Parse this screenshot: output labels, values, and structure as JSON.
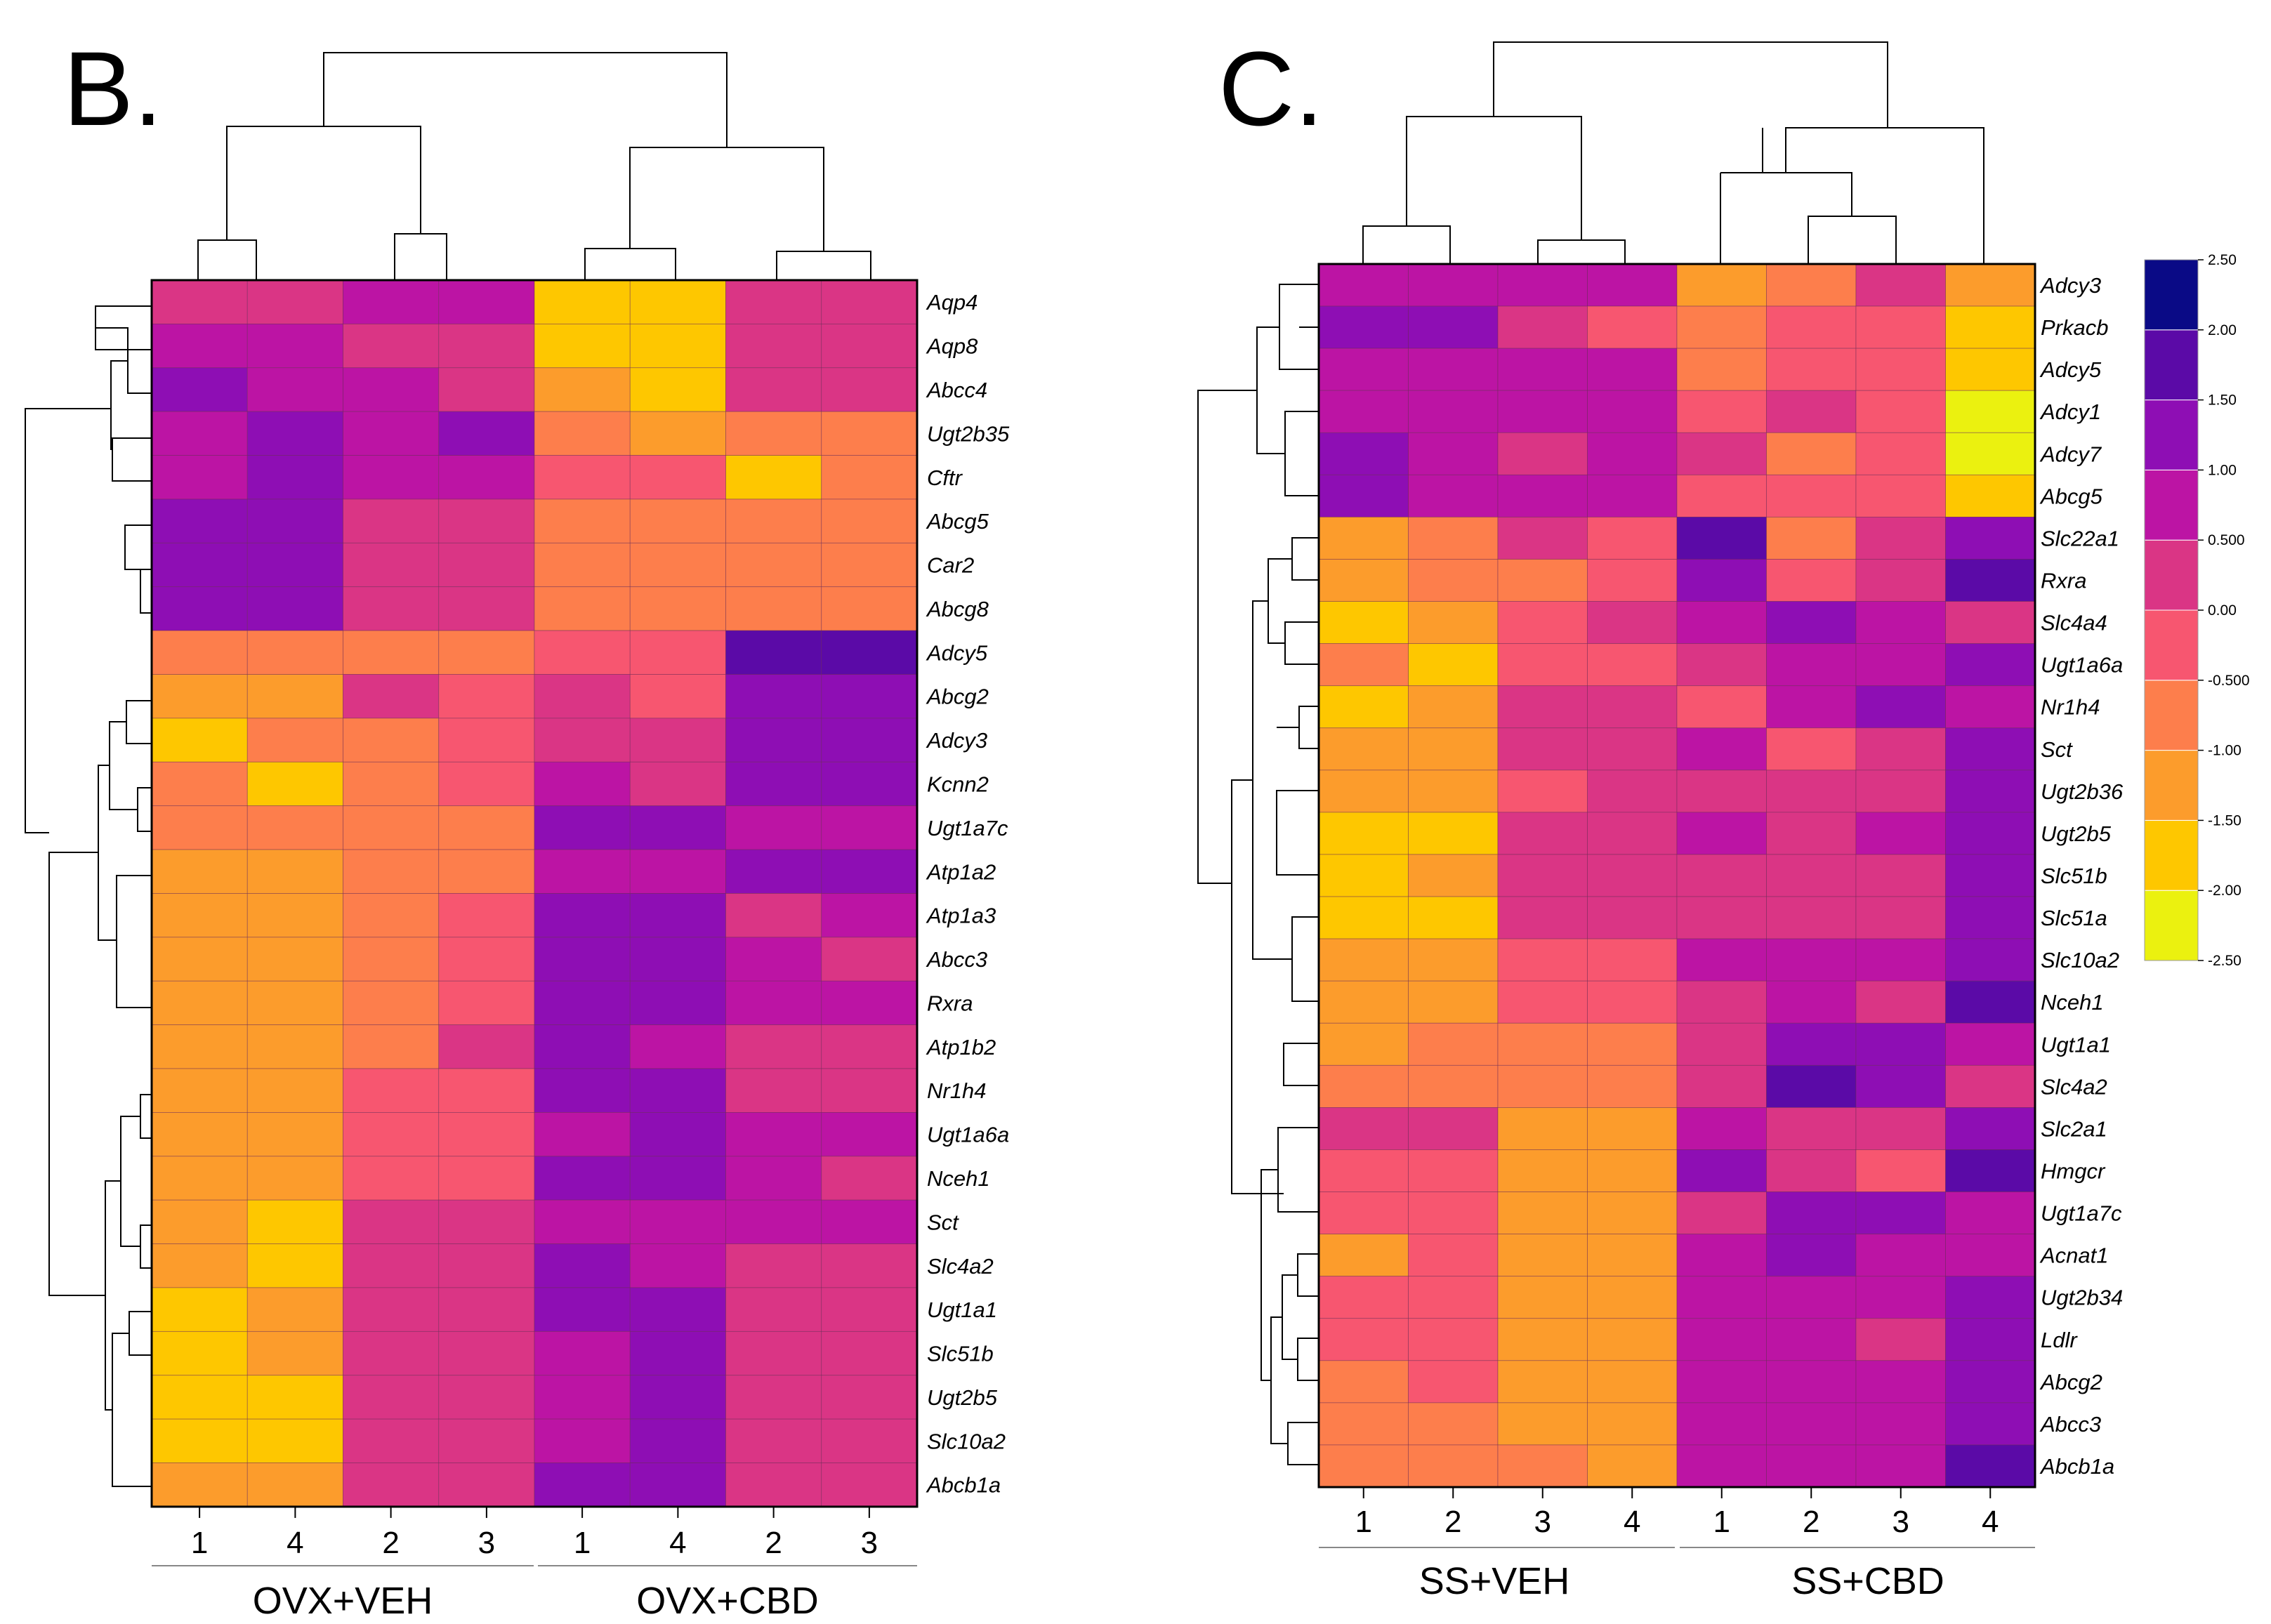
{
  "chart_data": [
    {
      "type": "heatmap",
      "panel": "B.",
      "col_labels": [
        "1",
        "4",
        "2",
        "3",
        "1",
        "4",
        "2",
        "3"
      ],
      "groups": [
        "OVX+VEH",
        "OVX+CBD"
      ],
      "rows": [
        "Aqp4",
        "Aqp8",
        "Abcc4",
        "Ugt2b35",
        "Cftr",
        "Abcg5",
        "Car2",
        "Abcg8",
        "Adcy5",
        "Abcg2",
        "Adcy3",
        "Kcnn2",
        "Ugt1a7c",
        "Atp1a2",
        "Atp1a3",
        "Abcc3",
        "Rxra",
        "Atp1b2",
        "Nr1h4",
        "Ugt1a6a",
        "Nceh1",
        "Sct",
        "Slc4a2",
        "Ugt1a1",
        "Slc51b",
        "Ugt2b5",
        "Slc10a2",
        "Abcb1a"
      ],
      "values": [
        [
          0.25,
          0.25,
          0.75,
          0.75,
          -2.0,
          -2.0,
          0.25,
          0.25
        ],
        [
          0.75,
          0.75,
          0.25,
          0.25,
          -2.0,
          -2.0,
          0.25,
          0.25
        ],
        [
          1.25,
          0.75,
          0.75,
          0.25,
          -1.5,
          -2.0,
          0.25,
          0.25
        ],
        [
          0.75,
          1.25,
          0.75,
          1.25,
          -0.75,
          -1.25,
          -0.75,
          -0.75
        ],
        [
          0.75,
          1.25,
          0.75,
          0.75,
          -0.25,
          -0.25,
          -2.0,
          -0.75
        ],
        [
          1.25,
          1.25,
          0.25,
          0.25,
          -0.75,
          -0.75,
          -0.75,
          -0.75
        ],
        [
          1.25,
          1.25,
          0.25,
          0.25,
          -0.75,
          -0.75,
          -0.75,
          -0.75
        ],
        [
          1.25,
          1.25,
          0.25,
          0.25,
          -0.75,
          -0.75,
          -0.75,
          -0.75
        ],
        [
          -0.75,
          -0.75,
          -0.75,
          -0.75,
          -0.25,
          -0.25,
          1.75,
          1.75
        ],
        [
          -1.25,
          -1.25,
          0.25,
          -0.25,
          0.25,
          -0.25,
          1.25,
          1.25
        ],
        [
          -2.0,
          -0.75,
          -0.75,
          -0.25,
          0.25,
          0.25,
          1.25,
          1.25
        ],
        [
          -0.75,
          -2.0,
          -0.75,
          -0.25,
          0.75,
          0.25,
          1.25,
          1.25
        ],
        [
          -0.75,
          -0.75,
          -0.75,
          -0.75,
          1.25,
          1.25,
          0.75,
          0.75
        ],
        [
          -1.25,
          -1.25,
          -0.75,
          -0.75,
          0.75,
          0.75,
          1.25,
          1.25
        ],
        [
          -1.25,
          -1.25,
          -0.75,
          -0.25,
          1.25,
          1.25,
          0.25,
          0.75
        ],
        [
          -1.25,
          -1.25,
          -0.75,
          -0.25,
          1.25,
          1.25,
          0.75,
          0.25
        ],
        [
          -1.25,
          -1.25,
          -0.75,
          -0.25,
          1.25,
          1.25,
          0.75,
          0.75
        ],
        [
          -1.25,
          -1.25,
          -0.75,
          0.25,
          1.25,
          0.75,
          0.25,
          0.25
        ],
        [
          -1.25,
          -1.25,
          -0.25,
          -0.25,
          1.25,
          1.25,
          0.25,
          0.25
        ],
        [
          -1.25,
          -1.25,
          -0.25,
          -0.25,
          0.75,
          1.25,
          0.75,
          0.75
        ],
        [
          -1.25,
          -1.25,
          -0.25,
          -0.25,
          1.25,
          1.25,
          0.75,
          0.25
        ],
        [
          -1.25,
          -2.0,
          0.25,
          0.25,
          0.75,
          0.75,
          0.75,
          0.75
        ],
        [
          -1.25,
          -2.0,
          0.25,
          0.25,
          1.25,
          0.75,
          0.25,
          0.25
        ],
        [
          -2.0,
          -1.25,
          0.25,
          0.25,
          1.25,
          1.25,
          0.25,
          0.25
        ],
        [
          -2.0,
          -1.25,
          0.25,
          0.25,
          0.75,
          1.25,
          0.25,
          0.25
        ],
        [
          -2.0,
          -2.0,
          0.25,
          0.25,
          0.75,
          1.25,
          0.25,
          0.25
        ],
        [
          -2.0,
          -2.0,
          0.25,
          0.25,
          0.75,
          1.25,
          0.25,
          0.25
        ],
        [
          -1.25,
          -1.25,
          0.25,
          0.25,
          1.25,
          1.25,
          0.25,
          0.25
        ]
      ]
    },
    {
      "type": "heatmap",
      "panel": "C.",
      "col_labels": [
        "1",
        "2",
        "3",
        "4",
        "1",
        "2",
        "3",
        "4"
      ],
      "groups": [
        "SS+VEH",
        "SS+CBD"
      ],
      "rows": [
        "Adcy3",
        "Prkacb",
        "Adcy5",
        "Adcy1",
        "Adcy7",
        "Abcg5",
        "Slc22a1",
        "Rxra",
        "Slc4a4",
        "Ugt1a6a",
        "Nr1h4",
        "Sct",
        "Ugt2b36",
        "Ugt2b5",
        "Slc51b",
        "Slc51a",
        "Slc10a2",
        "Nceh1",
        "Ugt1a1",
        "Slc4a2",
        "Slc2a1",
        "Hmgcr",
        "Ugt1a7c",
        "Acnat1",
        "Ugt2b34",
        "Ldlr",
        "Abcg2",
        "Abcc3",
        "Abcb1a"
      ],
      "values": [
        [
          0.75,
          0.75,
          0.75,
          0.75,
          -1.25,
          -0.75,
          0.25,
          -1.25
        ],
        [
          1.25,
          1.25,
          0.25,
          -0.25,
          -0.75,
          -0.25,
          -0.25,
          -2.0
        ],
        [
          0.75,
          0.75,
          0.75,
          0.75,
          -0.75,
          -0.25,
          -0.25,
          -2.0
        ],
        [
          0.75,
          0.75,
          0.75,
          0.75,
          -0.25,
          0.25,
          -0.25,
          -2.25
        ],
        [
          1.25,
          0.75,
          0.25,
          0.75,
          0.25,
          -0.75,
          -0.25,
          -2.25
        ],
        [
          1.25,
          0.75,
          0.75,
          0.75,
          -0.25,
          -0.25,
          -0.25,
          -2.0
        ],
        [
          -1.25,
          -0.75,
          0.25,
          -0.25,
          1.75,
          -0.75,
          0.25,
          1.25
        ],
        [
          -1.25,
          -0.75,
          -0.75,
          -0.25,
          1.25,
          -0.25,
          0.25,
          1.75
        ],
        [
          -2.0,
          -1.25,
          -0.25,
          0.25,
          0.75,
          1.25,
          0.75,
          0.25
        ],
        [
          -0.75,
          -2.0,
          -0.25,
          -0.25,
          0.25,
          0.75,
          0.75,
          1.25
        ],
        [
          -2.0,
          -1.25,
          0.25,
          0.25,
          -0.25,
          0.75,
          1.25,
          0.75
        ],
        [
          -1.25,
          -1.25,
          0.25,
          0.25,
          0.75,
          -0.25,
          0.25,
          1.25
        ],
        [
          -1.25,
          -1.25,
          -0.25,
          0.25,
          0.25,
          0.25,
          0.25,
          1.25
        ],
        [
          -2.0,
          -2.0,
          0.25,
          0.25,
          0.75,
          0.25,
          0.75,
          1.25
        ],
        [
          -2.0,
          -1.25,
          0.25,
          0.25,
          0.25,
          0.25,
          0.25,
          1.25
        ],
        [
          -2.0,
          -2.0,
          0.25,
          0.25,
          0.25,
          0.25,
          0.25,
          1.25
        ],
        [
          -1.25,
          -1.25,
          -0.25,
          -0.25,
          0.75,
          0.75,
          0.75,
          1.25
        ],
        [
          -1.25,
          -1.25,
          -0.25,
          -0.25,
          0.25,
          0.75,
          0.25,
          1.75
        ],
        [
          -1.25,
          -0.75,
          -0.75,
          -0.75,
          0.25,
          1.25,
          1.25,
          0.75
        ],
        [
          -0.75,
          -0.75,
          -0.75,
          -0.75,
          0.25,
          1.75,
          1.25,
          0.25
        ],
        [
          0.25,
          0.25,
          -1.25,
          -1.25,
          0.75,
          0.25,
          0.25,
          1.25
        ],
        [
          -0.25,
          -0.25,
          -1.25,
          -1.25,
          1.25,
          0.25,
          -0.25,
          1.75
        ],
        [
          -0.25,
          -0.25,
          -1.25,
          -1.25,
          0.25,
          1.25,
          1.25,
          0.75
        ],
        [
          -1.25,
          -0.25,
          -1.25,
          -1.25,
          0.75,
          1.25,
          0.75,
          0.75
        ],
        [
          -0.25,
          -0.25,
          -1.25,
          -1.25,
          0.75,
          0.75,
          0.75,
          1.25
        ],
        [
          -0.25,
          -0.25,
          -1.25,
          -1.25,
          0.75,
          0.75,
          0.25,
          1.25
        ],
        [
          -0.75,
          -0.25,
          -1.25,
          -1.25,
          0.75,
          0.75,
          0.75,
          1.25
        ],
        [
          -0.75,
          -0.75,
          -1.25,
          -1.25,
          0.75,
          0.75,
          0.75,
          1.25
        ],
        [
          -0.75,
          -0.75,
          -0.75,
          -1.25,
          0.75,
          0.75,
          0.75,
          1.75
        ]
      ]
    }
  ],
  "colorscale": {
    "range": [
      -2.5,
      2.5
    ],
    "step": 0.5,
    "tick_labels": [
      "2.50",
      "2.00",
      "1.50",
      "1.00",
      "0.500",
      "0.00",
      "-0.500",
      "-1.00",
      "-1.50",
      "-2.00",
      "-2.50"
    ],
    "band_colors_low_to_high": [
      "#ebf10f",
      "#fec700",
      "#fc9c2c",
      "#fd7e4c",
      "#f75670",
      "#da3585",
      "#bc14a4",
      "#8e0eb4",
      "#5b0aa7",
      "#0a0a86"
    ]
  }
}
